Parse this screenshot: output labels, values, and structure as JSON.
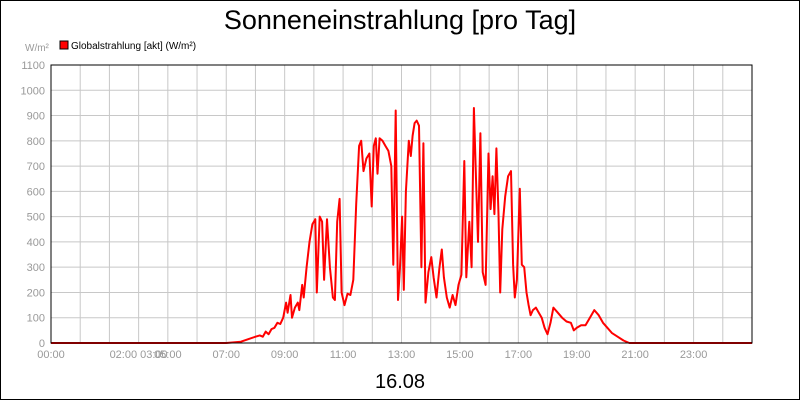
{
  "chart_data": {
    "type": "line",
    "title": "Sonneneinstrahlung [pro Tag]",
    "unit_label": "W/m²",
    "xlabel": "16.08",
    "ylim": [
      0,
      1100
    ],
    "y_ticks": [
      0,
      100,
      200,
      300,
      400,
      500,
      600,
      700,
      800,
      900,
      1000,
      1100
    ],
    "xlim": [
      0,
      24
    ],
    "x_tick_labels": [
      "00:00",
      "02:00 03:00",
      "05:00",
      "07:00",
      "09:00",
      "11:00",
      "13:00",
      "15:00",
      "17:00",
      "19:00",
      "21:00",
      "23:00"
    ],
    "grid": true,
    "legend_position": "top-left",
    "series": [
      {
        "name": "Globalstrahlung [akt] (W/m²)",
        "color": "#ff0000",
        "points": [
          [
            0.0,
            0
          ],
          [
            6.0,
            0
          ],
          [
            6.5,
            5
          ],
          [
            6.75,
            15
          ],
          [
            7.0,
            25
          ],
          [
            7.15,
            30
          ],
          [
            7.25,
            25
          ],
          [
            7.35,
            45
          ],
          [
            7.45,
            35
          ],
          [
            7.55,
            55
          ],
          [
            7.65,
            60
          ],
          [
            7.75,
            80
          ],
          [
            7.85,
            75
          ],
          [
            7.95,
            100
          ],
          [
            8.05,
            160
          ],
          [
            8.1,
            120
          ],
          [
            8.2,
            190
          ],
          [
            8.25,
            100
          ],
          [
            8.35,
            140
          ],
          [
            8.45,
            160
          ],
          [
            8.5,
            130
          ],
          [
            8.6,
            230
          ],
          [
            8.65,
            180
          ],
          [
            8.75,
            300
          ],
          [
            8.85,
            400
          ],
          [
            8.95,
            470
          ],
          [
            9.05,
            490
          ],
          [
            9.1,
            200
          ],
          [
            9.2,
            500
          ],
          [
            9.28,
            480
          ],
          [
            9.35,
            250
          ],
          [
            9.45,
            490
          ],
          [
            9.55,
            300
          ],
          [
            9.65,
            180
          ],
          [
            9.72,
            170
          ],
          [
            9.8,
            480
          ],
          [
            9.88,
            570
          ],
          [
            9.95,
            200
          ],
          [
            10.05,
            150
          ],
          [
            10.15,
            195
          ],
          [
            10.25,
            190
          ],
          [
            10.35,
            250
          ],
          [
            10.45,
            550
          ],
          [
            10.55,
            780
          ],
          [
            10.62,
            800
          ],
          [
            10.7,
            680
          ],
          [
            10.8,
            730
          ],
          [
            10.9,
            750
          ],
          [
            10.98,
            540
          ],
          [
            11.05,
            780
          ],
          [
            11.12,
            810
          ],
          [
            11.18,
            670
          ],
          [
            11.25,
            810
          ],
          [
            11.35,
            800
          ],
          [
            11.45,
            780
          ],
          [
            11.55,
            760
          ],
          [
            11.65,
            700
          ],
          [
            11.72,
            310
          ],
          [
            11.8,
            920
          ],
          [
            11.88,
            170
          ],
          [
            11.95,
            300
          ],
          [
            12.02,
            500
          ],
          [
            12.08,
            210
          ],
          [
            12.15,
            600
          ],
          [
            12.25,
            800
          ],
          [
            12.32,
            740
          ],
          [
            12.38,
            820
          ],
          [
            12.45,
            870
          ],
          [
            12.52,
            880
          ],
          [
            12.6,
            860
          ],
          [
            12.68,
            300
          ],
          [
            12.75,
            790
          ],
          [
            12.82,
            160
          ],
          [
            12.92,
            280
          ],
          [
            13.02,
            340
          ],
          [
            13.1,
            260
          ],
          [
            13.2,
            180
          ],
          [
            13.3,
            300
          ],
          [
            13.38,
            370
          ],
          [
            13.45,
            260
          ],
          [
            13.55,
            180
          ],
          [
            13.65,
            140
          ],
          [
            13.75,
            190
          ],
          [
            13.85,
            150
          ],
          [
            13.95,
            230
          ],
          [
            14.05,
            270
          ],
          [
            14.15,
            720
          ],
          [
            14.22,
            260
          ],
          [
            14.32,
            480
          ],
          [
            14.4,
            300
          ],
          [
            14.48,
            930
          ],
          [
            14.55,
            650
          ],
          [
            14.62,
            400
          ],
          [
            14.7,
            830
          ],
          [
            14.78,
            280
          ],
          [
            14.88,
            230
          ],
          [
            14.98,
            750
          ],
          [
            15.05,
            530
          ],
          [
            15.12,
            660
          ],
          [
            15.18,
            510
          ],
          [
            15.25,
            770
          ],
          [
            15.32,
            510
          ],
          [
            15.38,
            200
          ],
          [
            15.45,
            450
          ],
          [
            15.55,
            580
          ],
          [
            15.65,
            660
          ],
          [
            15.75,
            680
          ],
          [
            15.82,
            310
          ],
          [
            15.88,
            180
          ],
          [
            15.95,
            250
          ],
          [
            16.05,
            610
          ],
          [
            16.12,
            310
          ],
          [
            16.2,
            300
          ],
          [
            16.28,
            200
          ],
          [
            16.35,
            150
          ],
          [
            16.42,
            110
          ],
          [
            16.5,
            130
          ],
          [
            16.6,
            140
          ],
          [
            16.7,
            120
          ],
          [
            16.8,
            100
          ],
          [
            16.9,
            60
          ],
          [
            17.0,
            35
          ],
          [
            17.1,
            80
          ],
          [
            17.2,
            140
          ],
          [
            17.35,
            120
          ],
          [
            17.5,
            100
          ],
          [
            17.65,
            85
          ],
          [
            17.8,
            80
          ],
          [
            17.9,
            50
          ],
          [
            18.0,
            60
          ],
          [
            18.15,
            70
          ],
          [
            18.3,
            70
          ],
          [
            18.45,
            100
          ],
          [
            18.6,
            130
          ],
          [
            18.75,
            110
          ],
          [
            18.9,
            80
          ],
          [
            19.05,
            60
          ],
          [
            19.2,
            40
          ],
          [
            19.4,
            25
          ],
          [
            19.6,
            10
          ],
          [
            19.8,
            0
          ],
          [
            24.0,
            0
          ]
        ]
      }
    ]
  }
}
